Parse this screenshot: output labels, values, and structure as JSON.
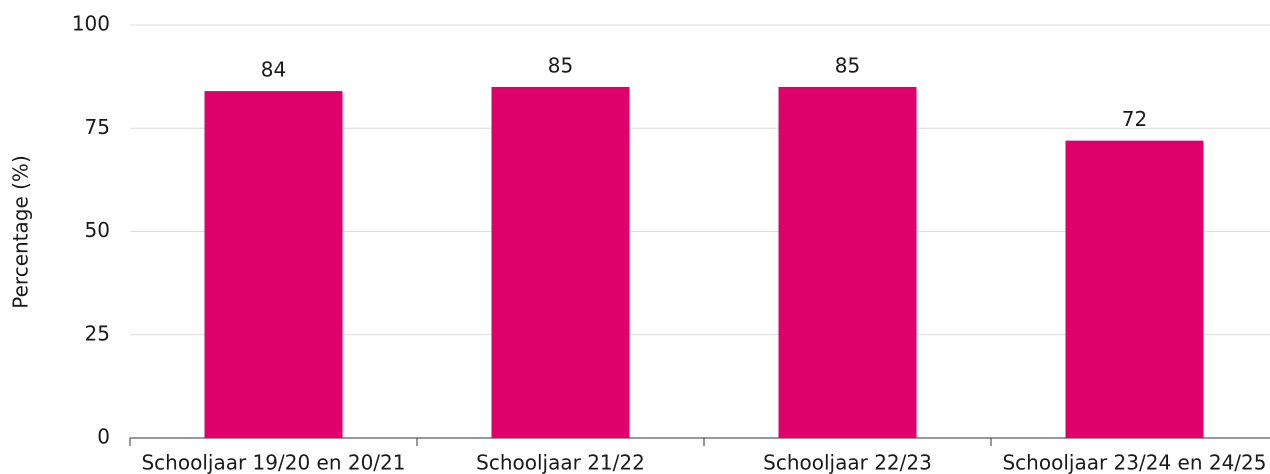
{
  "chart_data": {
    "type": "bar",
    "y_label": "Percentage (%)",
    "categories": [
      "Schooljaar 19/20 en 20/21",
      "Schooljaar 21/22",
      "Schooljaar 22/23",
      "Schooljaar 23/24 en 24/25"
    ],
    "values": [
      84,
      85,
      85,
      72
    ],
    "color": "#e0006b",
    "ylim": [
      0,
      100
    ],
    "yticks": [
      0,
      25,
      50,
      75,
      100
    ],
    "grid": true
  }
}
